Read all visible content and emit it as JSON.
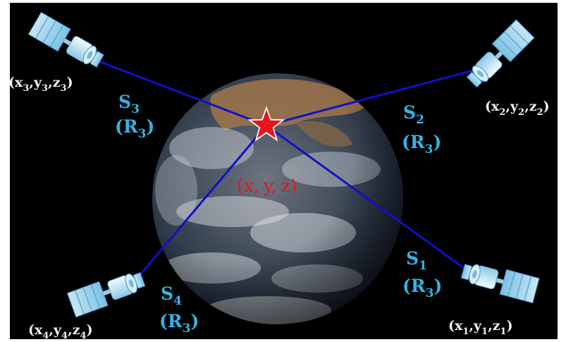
{
  "colors": {
    "background": "#000000",
    "coord_text": "#f0f0f0",
    "satellite_text": "#34b4e4",
    "signal_line": "#1010c8",
    "star": "#e8141e",
    "center_text": "#e01818"
  },
  "receiver": {
    "icon": "star-icon",
    "label": {
      "open": "(",
      "x": "x",
      "sep1": ",",
      "y": "y",
      "sep2": ",",
      "z": "z",
      "close": ")"
    }
  },
  "satellites": [
    {
      "id": "s3",
      "icon": "satellite-icon",
      "name": {
        "base": "S",
        "sub": "3"
      },
      "range": {
        "open": "(",
        "base": "R",
        "sub": "3",
        "close": ")"
      },
      "coords": {
        "open": "(",
        "x": "x",
        "xs": "3",
        "c1": ",",
        "y": "y",
        "ys": "3",
        "c2": ",",
        "z": "z",
        "zs": "3",
        "close": ")"
      }
    },
    {
      "id": "s2",
      "icon": "satellite-icon",
      "name": {
        "base": "S",
        "sub": "2"
      },
      "range": {
        "open": "(",
        "base": "R",
        "sub": "3",
        "close": ")"
      },
      "coords": {
        "open": "(",
        "x": "x",
        "xs": "2",
        "c1": ",",
        "y": "y",
        "ys": "2",
        "c2": ",",
        "z": "z",
        "zs": "2",
        "close": ")"
      }
    },
    {
      "id": "s1",
      "icon": "satellite-icon",
      "name": {
        "base": "S",
        "sub": "1"
      },
      "range": {
        "open": "(",
        "base": "R",
        "sub": "3",
        "close": ")"
      },
      "coords": {
        "open": "(",
        "x": "x",
        "xs": "1",
        "c1": ",",
        "y": "y",
        "ys": "1",
        "c2": ",",
        "z": "z",
        "zs": "1",
        "close": ")"
      }
    },
    {
      "id": "s4",
      "icon": "satellite-icon",
      "name": {
        "base": "S",
        "sub": "4"
      },
      "range": {
        "open": "(",
        "base": "R",
        "sub": "3",
        "close": ")"
      },
      "coords": {
        "open": "(",
        "x": "x",
        "xs": "4",
        "c1": ",",
        "y": "y",
        "ys": "4",
        "c2": ",",
        "z": "z",
        "zs": "4",
        "close": ")"
      }
    }
  ]
}
